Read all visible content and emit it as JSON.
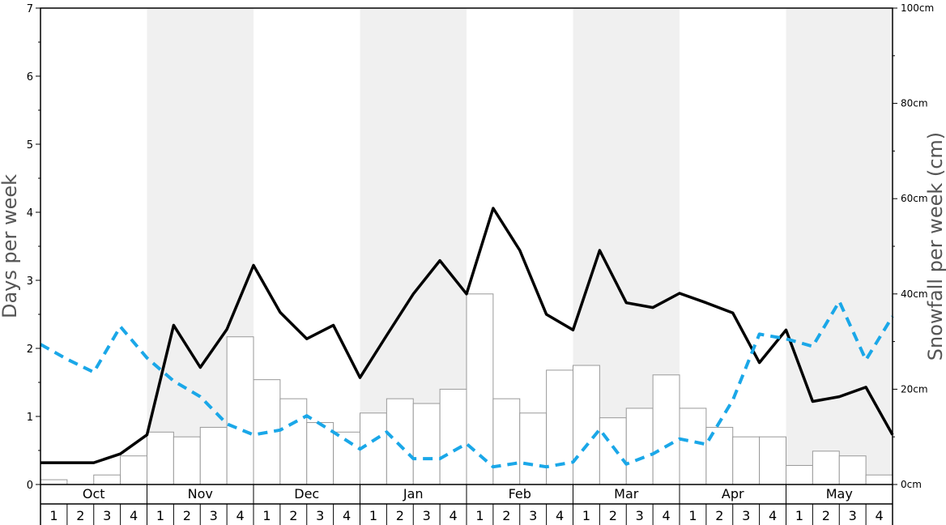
{
  "chart_data": {
    "type": "bar",
    "title": "",
    "ylabel": "Days per week",
    "y2label": "Snowfall per week (cm)",
    "ylim": [
      0,
      7
    ],
    "y2lim": [
      0,
      100
    ],
    "yticks": [
      "0",
      "1",
      "2",
      "3",
      "4",
      "5",
      "6",
      "7"
    ],
    "y2ticks": [
      "0cm",
      "20cm",
      "40cm",
      "60cm",
      "80cm",
      "100cm"
    ],
    "months": [
      "Oct",
      "Nov",
      "Dec",
      "Jan",
      "Feb",
      "Mar",
      "Apr",
      "May"
    ],
    "weeks": [
      "1",
      "2",
      "3",
      "4"
    ],
    "grid": false,
    "series": [
      {
        "type": "bar",
        "axis": "right",
        "color": "#ffffff",
        "edge_color": "#999999",
        "values": [
          1,
          0,
          2,
          6,
          11,
          10,
          12,
          31,
          22,
          18,
          13,
          11,
          15,
          18,
          17,
          20,
          40,
          18,
          15,
          24,
          25,
          14,
          16,
          23,
          16,
          12,
          10,
          10,
          4,
          7,
          6,
          2
        ]
      },
      {
        "type": "line",
        "axis": "left",
        "color": "#000000",
        "style": "solid",
        "values": [
          0.32,
          0.32,
          0.32,
          0.45,
          0.73,
          2.34,
          1.72,
          2.28,
          3.22,
          2.53,
          2.14,
          2.34,
          1.57,
          2.19,
          2.8,
          3.29,
          2.8,
          4.06,
          3.44,
          2.5,
          2.27,
          3.44,
          2.67,
          2.6,
          2.81,
          2.67,
          2.52,
          1.79,
          2.27,
          1.22,
          1.29,
          1.43,
          0.73
        ]
      },
      {
        "type": "line",
        "axis": "left",
        "color": "#1aa7e8",
        "style": "dashed",
        "values": [
          2.06,
          1.84,
          1.65,
          2.32,
          1.86,
          1.52,
          1.29,
          0.89,
          0.73,
          0.8,
          1.01,
          0.77,
          0.52,
          0.77,
          0.38,
          0.38,
          0.6,
          0.26,
          0.32,
          0.26,
          0.33,
          0.81,
          0.3,
          0.45,
          0.67,
          0.59,
          1.24,
          2.21,
          2.14,
          2.03,
          2.69,
          1.83,
          2.47
        ]
      }
    ]
  }
}
